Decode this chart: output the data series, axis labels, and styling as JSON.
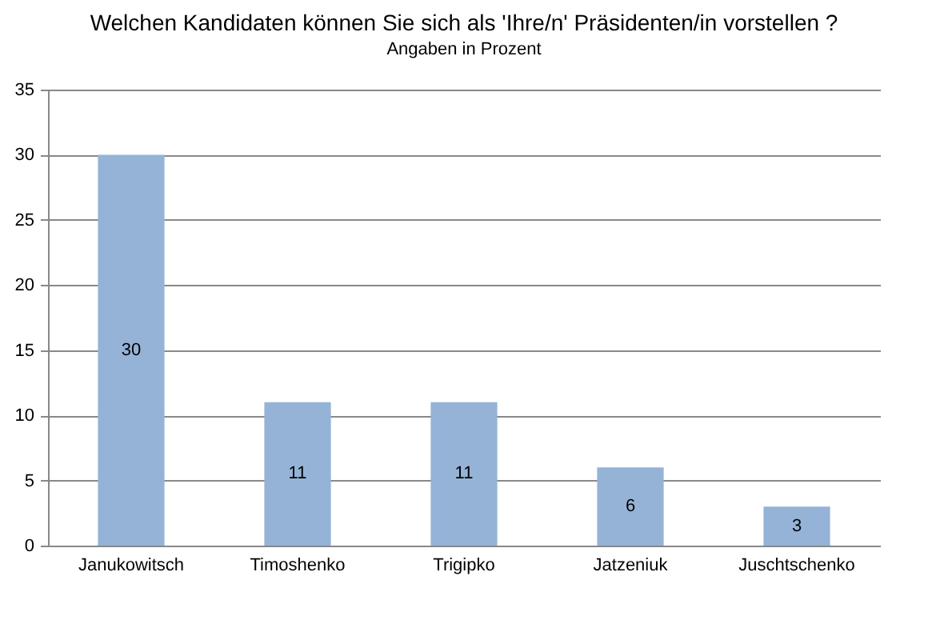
{
  "chart_data": {
    "type": "bar",
    "title": "Welchen Kandidaten können Sie sich als 'Ihre/n' Präsidenten/in vorstellen ?",
    "subtitle": "Angaben in Prozent",
    "categories": [
      "Janukowitsch",
      "Timoshenko",
      "Trigipko",
      "Jatzeniuk",
      "Juschtschenko"
    ],
    "values": [
      30,
      11,
      11,
      6,
      3
    ],
    "color": "#95b3d7",
    "data_labels": true,
    "ylim": [
      0,
      35
    ],
    "yticks": [
      0,
      5,
      10,
      15,
      20,
      25,
      30,
      35
    ],
    "grid": "y"
  }
}
